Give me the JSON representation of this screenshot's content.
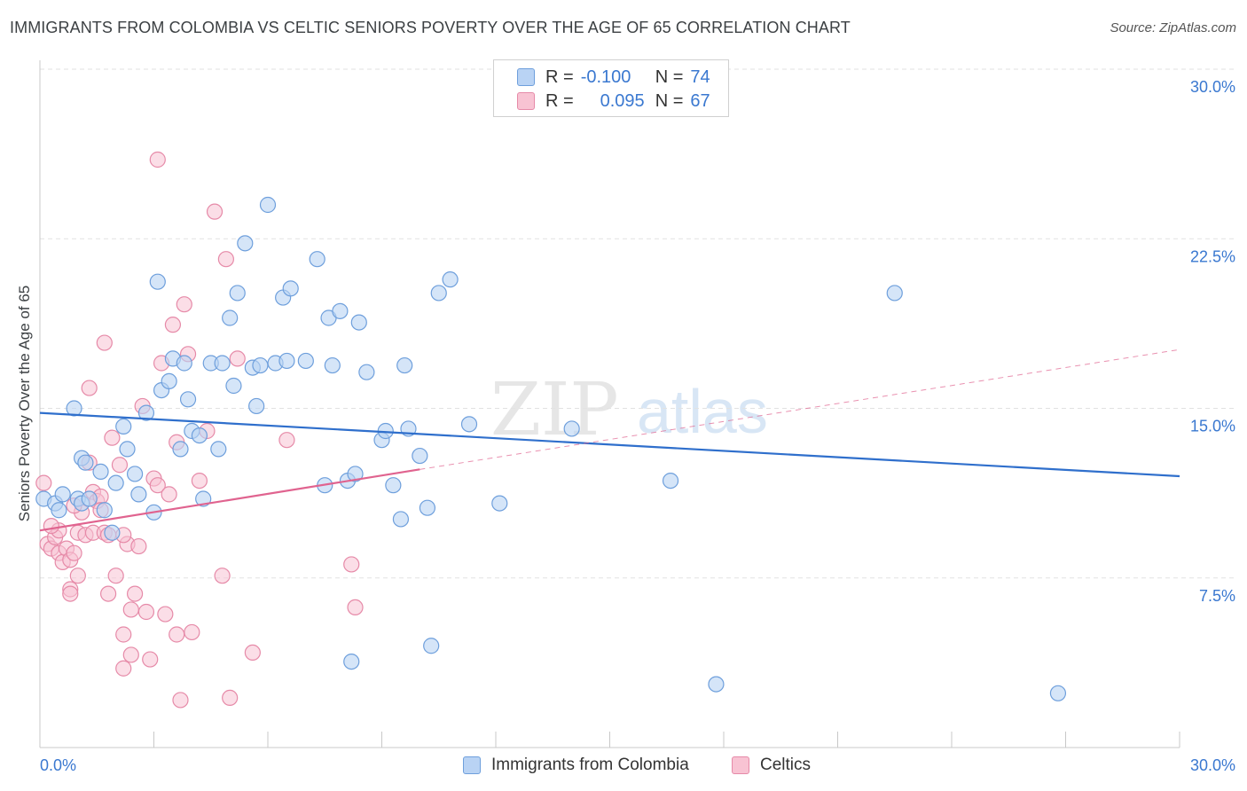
{
  "header": {
    "title": "IMMIGRANTS FROM COLOMBIA VS CELTIC SENIORS POVERTY OVER THE AGE OF 65 CORRELATION CHART",
    "source": "Source: ZipAtlas.com"
  },
  "watermark": {
    "zip": "ZIP",
    "atlas": "atlas"
  },
  "legend": {
    "rows": [
      {
        "r_label": "R =",
        "r_value": "-0.100",
        "n_label": "N =",
        "n_value": "74"
      },
      {
        "r_label": "R =",
        "r_value": "0.095",
        "n_label": "N =",
        "n_value": "67"
      }
    ]
  },
  "bottom_legend": {
    "items": [
      {
        "label": "Immigrants from Colombia"
      },
      {
        "label": "Celtics"
      }
    ]
  },
  "colors": {
    "blue_fill": "#b9d3f4",
    "blue_stroke": "#6e9fdc",
    "blue_line": "#2f6fcc",
    "pink_fill": "#f8c3d3",
    "pink_stroke": "#e68aa8",
    "pink_line": "#e0638f",
    "tick_label": "#3a78d0",
    "grid": "#e2e2e2"
  },
  "chart_data": {
    "type": "scatter",
    "title": "IMMIGRANTS FROM COLOMBIA VS CELTIC SENIORS POVERTY OVER THE AGE OF 65 CORRELATION CHART",
    "xlabel": "",
    "ylabel": "Seniors Poverty Over the Age of 65",
    "xlim": [
      0,
      30
    ],
    "ylim": [
      0,
      30
    ],
    "x_tick_labels": [
      "0.0%",
      "30.0%"
    ],
    "y_tick_labels": [
      "7.5%",
      "15.0%",
      "22.5%",
      "30.0%"
    ],
    "y_ticks": [
      7.5,
      15.0,
      22.5,
      30.0
    ],
    "grid": true,
    "legend_position": "top-center",
    "series": [
      {
        "name": "Immigrants from Colombia",
        "color": "#6e9fdc",
        "r": -0.1,
        "n": 74,
        "trend": {
          "x": [
            0,
            30
          ],
          "y": [
            14.8,
            12.0
          ]
        },
        "points": [
          [
            0.1,
            11.0
          ],
          [
            0.4,
            10.8
          ],
          [
            0.5,
            10.5
          ],
          [
            0.6,
            11.2
          ],
          [
            0.9,
            15.0
          ],
          [
            1.0,
            11.0
          ],
          [
            1.1,
            10.8
          ],
          [
            1.1,
            12.8
          ],
          [
            1.3,
            11.0
          ],
          [
            1.6,
            12.2
          ],
          [
            1.7,
            10.5
          ],
          [
            1.9,
            9.5
          ],
          [
            2.0,
            11.7
          ],
          [
            2.2,
            14.2
          ],
          [
            2.3,
            13.2
          ],
          [
            2.5,
            12.1
          ],
          [
            2.6,
            11.2
          ],
          [
            2.8,
            14.8
          ],
          [
            3.0,
            10.4
          ],
          [
            3.1,
            20.6
          ],
          [
            3.2,
            15.8
          ],
          [
            3.4,
            16.2
          ],
          [
            3.5,
            17.2
          ],
          [
            3.7,
            13.2
          ],
          [
            3.8,
            17.0
          ],
          [
            3.9,
            15.4
          ],
          [
            4.0,
            14.0
          ],
          [
            4.2,
            13.8
          ],
          [
            4.3,
            11.0
          ],
          [
            4.5,
            17.0
          ],
          [
            4.7,
            13.2
          ],
          [
            4.8,
            17.0
          ],
          [
            5.0,
            19.0
          ],
          [
            5.1,
            16.0
          ],
          [
            5.2,
            20.1
          ],
          [
            5.4,
            22.3
          ],
          [
            5.6,
            16.8
          ],
          [
            5.7,
            15.1
          ],
          [
            5.8,
            16.9
          ],
          [
            6.0,
            24.0
          ],
          [
            6.2,
            17.0
          ],
          [
            6.4,
            19.9
          ],
          [
            6.5,
            17.1
          ],
          [
            6.6,
            20.3
          ],
          [
            7.0,
            17.1
          ],
          [
            7.3,
            21.6
          ],
          [
            7.5,
            11.6
          ],
          [
            7.6,
            19.0
          ],
          [
            7.7,
            16.9
          ],
          [
            7.9,
            19.3
          ],
          [
            8.1,
            11.8
          ],
          [
            8.3,
            12.1
          ],
          [
            8.4,
            18.8
          ],
          [
            8.6,
            16.6
          ],
          [
            9.0,
            13.6
          ],
          [
            9.1,
            14.0
          ],
          [
            9.3,
            11.6
          ],
          [
            9.5,
            10.1
          ],
          [
            9.6,
            16.9
          ],
          [
            9.7,
            14.1
          ],
          [
            10.0,
            12.9
          ],
          [
            10.2,
            10.6
          ],
          [
            10.3,
            4.5
          ],
          [
            10.5,
            20.1
          ],
          [
            10.8,
            20.7
          ],
          [
            11.3,
            14.3
          ],
          [
            12.1,
            10.8
          ],
          [
            14.0,
            14.1
          ],
          [
            16.6,
            11.8
          ],
          [
            17.8,
            2.8
          ],
          [
            22.5,
            20.1
          ],
          [
            26.8,
            2.4
          ],
          [
            8.2,
            3.8
          ],
          [
            1.2,
            12.6
          ]
        ]
      },
      {
        "name": "Celtics",
        "color": "#e68aa8",
        "r": 0.095,
        "n": 67,
        "trend": {
          "x": [
            0,
            10.0
          ],
          "y": [
            9.6,
            12.3
          ]
        },
        "trend_extension": {
          "x": [
            10.0,
            30
          ],
          "y": [
            12.3,
            17.6
          ]
        },
        "points": [
          [
            0.1,
            11.7
          ],
          [
            0.2,
            9.0
          ],
          [
            0.3,
            8.8
          ],
          [
            0.4,
            9.3
          ],
          [
            0.5,
            9.6
          ],
          [
            0.5,
            8.6
          ],
          [
            0.6,
            8.2
          ],
          [
            0.7,
            8.8
          ],
          [
            0.8,
            7.0
          ],
          [
            0.8,
            8.3
          ],
          [
            0.8,
            6.8
          ],
          [
            0.9,
            8.6
          ],
          [
            1.0,
            9.5
          ],
          [
            1.0,
            7.6
          ],
          [
            1.1,
            10.4
          ],
          [
            1.2,
            9.4
          ],
          [
            1.3,
            15.9
          ],
          [
            1.3,
            12.6
          ],
          [
            1.4,
            9.5
          ],
          [
            1.4,
            11.3
          ],
          [
            1.5,
            10.9
          ],
          [
            1.6,
            11.1
          ],
          [
            1.7,
            9.5
          ],
          [
            1.7,
            17.9
          ],
          [
            1.8,
            9.4
          ],
          [
            1.8,
            6.8
          ],
          [
            1.9,
            13.7
          ],
          [
            2.0,
            7.6
          ],
          [
            2.1,
            12.5
          ],
          [
            2.2,
            3.5
          ],
          [
            2.2,
            5.0
          ],
          [
            2.3,
            9.0
          ],
          [
            2.4,
            6.1
          ],
          [
            2.4,
            4.1
          ],
          [
            2.5,
            6.8
          ],
          [
            2.6,
            8.9
          ],
          [
            2.7,
            15.1
          ],
          [
            2.8,
            6.0
          ],
          [
            2.9,
            3.9
          ],
          [
            3.0,
            11.9
          ],
          [
            3.1,
            11.6
          ],
          [
            3.1,
            26.0
          ],
          [
            3.2,
            17.0
          ],
          [
            3.3,
            5.9
          ],
          [
            3.5,
            18.7
          ],
          [
            3.6,
            13.5
          ],
          [
            3.6,
            5.0
          ],
          [
            3.7,
            2.1
          ],
          [
            3.8,
            19.6
          ],
          [
            3.9,
            17.4
          ],
          [
            4.0,
            5.1
          ],
          [
            4.2,
            11.8
          ],
          [
            4.4,
            14.0
          ],
          [
            4.6,
            23.7
          ],
          [
            4.8,
            7.6
          ],
          [
            4.9,
            21.6
          ],
          [
            5.0,
            2.2
          ],
          [
            5.2,
            17.2
          ],
          [
            5.6,
            4.2
          ],
          [
            6.5,
            13.6
          ],
          [
            8.2,
            8.1
          ],
          [
            8.3,
            6.2
          ],
          [
            0.3,
            9.8
          ],
          [
            0.9,
            10.7
          ],
          [
            1.6,
            10.5
          ],
          [
            2.2,
            9.4
          ],
          [
            3.4,
            11.2
          ]
        ]
      }
    ]
  }
}
